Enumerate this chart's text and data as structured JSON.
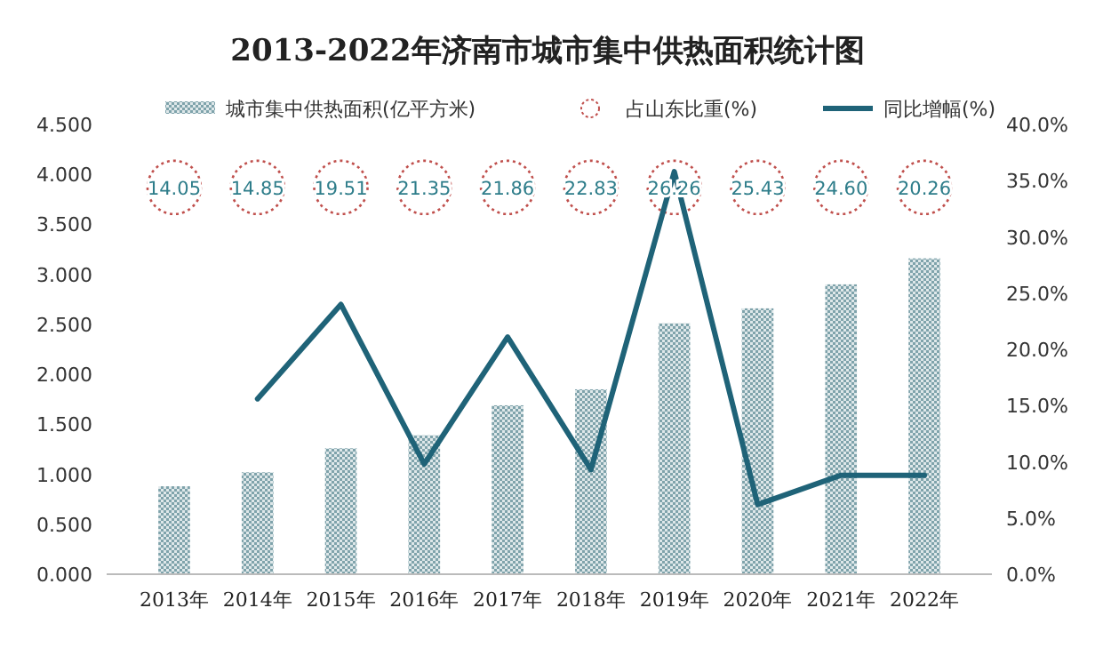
{
  "chart_data": {
    "type": "bar",
    "title": "2013-2022年济南市城市集中供热面积统计图",
    "categories": [
      "2013年",
      "2014年",
      "2015年",
      "2016年",
      "2017年",
      "2018年",
      "2019年",
      "2020年",
      "2021年",
      "2022年"
    ],
    "series": [
      {
        "name": "城市集中供热面积(亿平方米)",
        "color": "#7fa3ab",
        "values": [
          0.88,
          1.02,
          1.26,
          1.39,
          1.69,
          1.85,
          2.51,
          2.66,
          2.9,
          3.16
        ]
      },
      {
        "name": "同比增幅(%)",
        "type": "line",
        "color": "#1f6378",
        "axis": "y2",
        "values": [
          null,
          15.6,
          24.0,
          9.8,
          21.1,
          9.3,
          35.8,
          6.2,
          8.8,
          8.8
        ]
      }
    ],
    "annotations": [
      "占山东比重(%)",
      {
        "text": "14.05",
        "x": "2013年",
        "y": 3.87
      },
      {
        "text": "14.85",
        "x": "2014年",
        "y": 3.87
      },
      {
        "text": "19.51",
        "x": "2015年",
        "y": 3.87
      },
      {
        "text": "21.35",
        "x": "2016年",
        "y": 3.87
      },
      {
        "text": "21.86",
        "x": "2017年",
        "y": 3.87
      },
      {
        "text": "22.83",
        "x": "2018年",
        "y": 3.87
      },
      {
        "text": "26.26",
        "x": "2019年",
        "y": 3.87
      },
      {
        "text": "25.43",
        "x": "2020年",
        "y": 3.87
      },
      {
        "text": "24.60",
        "x": "2021年",
        "y": 3.87
      },
      {
        "text": "20.26",
        "x": "2022年",
        "y": 3.87
      }
    ],
    "ylim": [
      0,
      4.5
    ],
    "yticks": [
      {
        "value": 0,
        "label": "0.000"
      },
      {
        "value": 0.5,
        "label": "0.500"
      },
      {
        "value": 1,
        "label": "1.000"
      },
      {
        "value": 1.5,
        "label": "1.500"
      },
      {
        "value": 2,
        "label": "2.000"
      },
      {
        "value": 2.5,
        "label": "2.500"
      },
      {
        "value": 3,
        "label": "3.000"
      },
      {
        "value": 3.5,
        "label": "3.500"
      },
      {
        "value": 4,
        "label": "4.000"
      },
      {
        "value": 4.5,
        "label": "4.500"
      }
    ],
    "y2lim": [
      0,
      40
    ],
    "y2ticks": [
      {
        "value": 0,
        "label": "0.0%"
      },
      {
        "value": 5,
        "label": "5.0%"
      },
      {
        "value": 10,
        "label": "10.0%"
      },
      {
        "value": 15,
        "label": "15.0%"
      },
      {
        "value": 20,
        "label": "20.0%"
      },
      {
        "value": 25,
        "label": "25.0%"
      },
      {
        "value": 30,
        "label": "30.0%"
      },
      {
        "value": 35,
        "label": "35.0%"
      },
      {
        "value": 40,
        "label": "40.0%"
      }
    ],
    "legend": "top",
    "grid": false
  }
}
